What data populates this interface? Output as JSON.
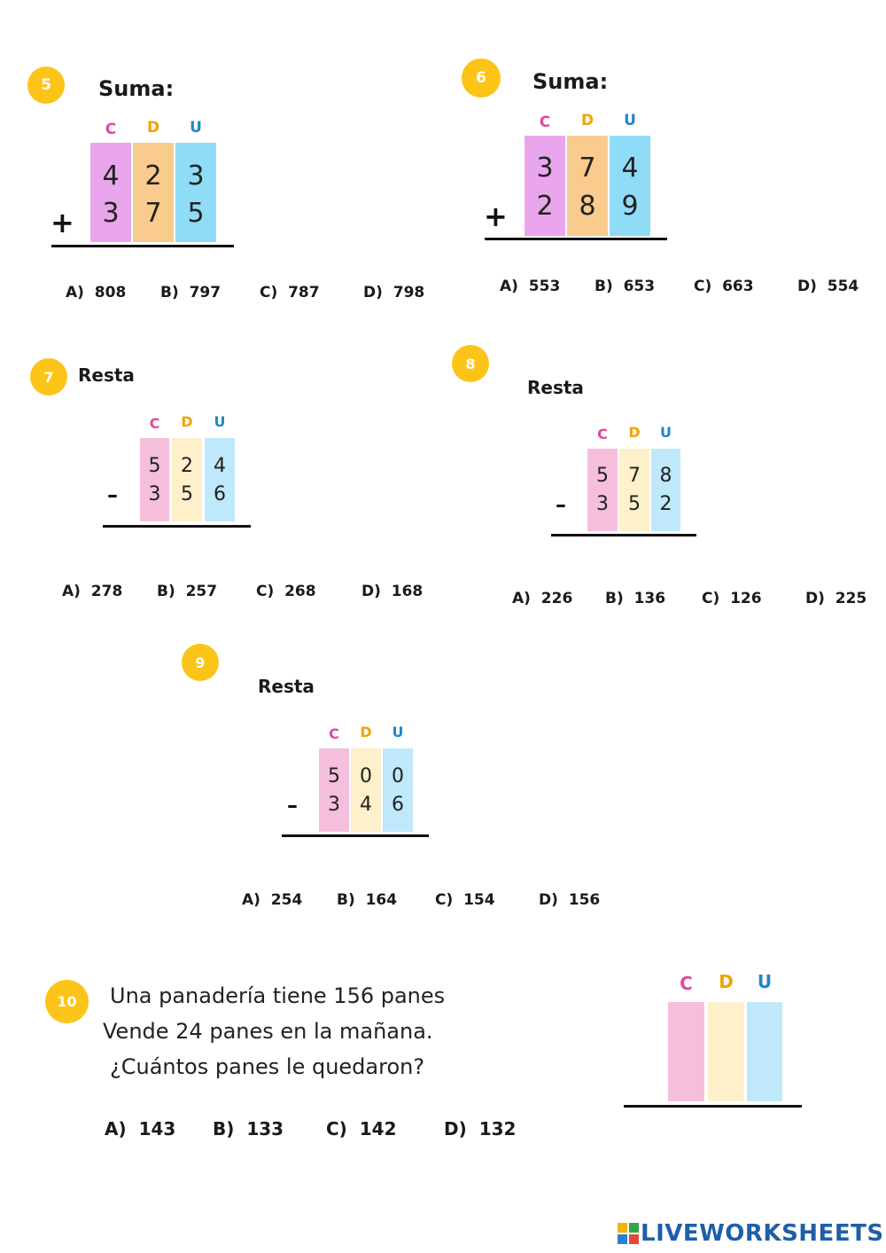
{
  "headers": {
    "c": "C",
    "d": "D",
    "u": "U"
  },
  "problems": [
    {
      "number": "5",
      "title": "Suma:",
      "operator": "+",
      "top": [
        "4",
        "2",
        "3"
      ],
      "bottom": [
        "3",
        "7",
        "5"
      ],
      "options": [
        {
          "label": "A)",
          "value": "808"
        },
        {
          "label": "B)",
          "value": "797"
        },
        {
          "label": "C)",
          "value": "787"
        },
        {
          "label": "D)",
          "value": "798"
        }
      ]
    },
    {
      "number": "6",
      "title": "Suma:",
      "operator": "+",
      "top": [
        "3",
        "7",
        "4"
      ],
      "bottom": [
        "2",
        "8",
        "9"
      ],
      "options": [
        {
          "label": "A)",
          "value": "553"
        },
        {
          "label": "B)",
          "value": "653"
        },
        {
          "label": "C)",
          "value": "663"
        },
        {
          "label": "D)",
          "value": "554"
        }
      ]
    },
    {
      "number": "7",
      "title": "Resta",
      "operator": "–",
      "top": [
        "5",
        "2",
        "4"
      ],
      "bottom": [
        "3",
        "5",
        "6"
      ],
      "options": [
        {
          "label": "A)",
          "value": "278"
        },
        {
          "label": "B)",
          "value": "257"
        },
        {
          "label": "C)",
          "value": "268"
        },
        {
          "label": "D)",
          "value": "168"
        }
      ]
    },
    {
      "number": "8",
      "title": "Resta",
      "operator": "–",
      "top": [
        "5",
        "7",
        "8"
      ],
      "bottom": [
        "3",
        "5",
        "2"
      ],
      "options": [
        {
          "label": "A)",
          "value": "226"
        },
        {
          "label": "B)",
          "value": "136"
        },
        {
          "label": "C)",
          "value": "126"
        },
        {
          "label": "D)",
          "value": "225"
        }
      ]
    },
    {
      "number": "9",
      "title": "Resta",
      "operator": "–",
      "top": [
        "5",
        "0",
        "0"
      ],
      "bottom": [
        "3",
        "4",
        "6"
      ],
      "options": [
        {
          "label": "A)",
          "value": "254"
        },
        {
          "label": "B)",
          "value": "164"
        },
        {
          "label": "C)",
          "value": "154"
        },
        {
          "label": "D)",
          "value": "156"
        }
      ]
    },
    {
      "number": "10",
      "lines": [
        "Una panadería tiene 156 panes",
        "Vende 24 panes en la mañana.",
        "¿Cuántos panes le quedaron?"
      ],
      "options": [
        {
          "label": "A)",
          "value": "143"
        },
        {
          "label": "B)",
          "value": "133"
        },
        {
          "label": "C)",
          "value": "142"
        },
        {
          "label": "D)",
          "value": "132"
        }
      ]
    }
  ],
  "footer": {
    "logo_text": "LIVEWORKSHEETS"
  }
}
